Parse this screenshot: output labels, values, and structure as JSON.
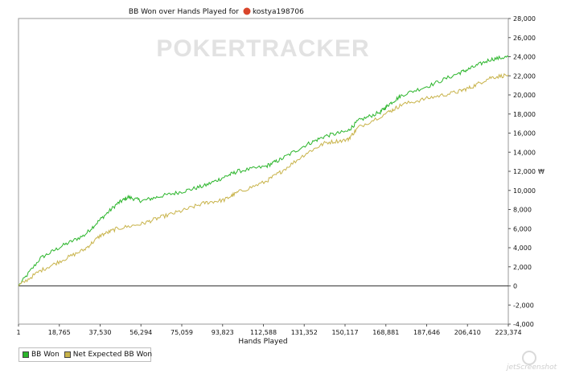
{
  "chart_data": {
    "type": "line",
    "title": "BB Won over Hands Played for",
    "player": "kostya198706",
    "watermark": "POKERTRACKER",
    "xlabel": "Hands Played",
    "ylabel": "",
    "x_ticks": [
      "1",
      "18,765",
      "37,530",
      "56,294",
      "75,059",
      "93,823",
      "112,588",
      "131,352",
      "150,117",
      "168,881",
      "187,646",
      "206,410",
      "223,374"
    ],
    "y_ticks": [
      -4000,
      -2000,
      0,
      2000,
      4000,
      6000,
      8000,
      10000,
      12000,
      14000,
      16000,
      18000,
      20000,
      22000,
      24000,
      26000,
      28000
    ],
    "y_tick_labels": [
      "-4,000",
      "-2,000",
      "0",
      "2,000",
      "4,000",
      "6,000",
      "8,000",
      "10,000",
      "12,000",
      "14,000",
      "16,000",
      "18,000",
      "20,000",
      "22,000",
      "24,000",
      "26,000",
      "28,000"
    ],
    "xlim": [
      1,
      223374
    ],
    "ylim": [
      -4000,
      28000
    ],
    "grid": false,
    "legend_position": "bottom-left",
    "series": [
      {
        "name": "BB Won",
        "color": "#2bb52b",
        "points": [
          [
            1,
            0
          ],
          [
            10000,
            2900
          ],
          [
            20000,
            4200
          ],
          [
            30000,
            5300
          ],
          [
            37530,
            7000
          ],
          [
            45000,
            8600
          ],
          [
            50000,
            9300
          ],
          [
            56294,
            8900
          ],
          [
            65000,
            9400
          ],
          [
            75059,
            9900
          ],
          [
            85000,
            10500
          ],
          [
            93823,
            11400
          ],
          [
            100000,
            12000
          ],
          [
            112588,
            12500
          ],
          [
            120000,
            13300
          ],
          [
            131352,
            14800
          ],
          [
            140000,
            15700
          ],
          [
            150117,
            16200
          ],
          [
            155000,
            17300
          ],
          [
            165000,
            18200
          ],
          [
            168881,
            19000
          ],
          [
            175000,
            20000
          ],
          [
            187646,
            21000
          ],
          [
            200000,
            22200
          ],
          [
            206410,
            22800
          ],
          [
            215000,
            23700
          ],
          [
            223374,
            24000
          ]
        ]
      },
      {
        "name": "Net Expected BB Won",
        "color": "#c8b34a",
        "points": [
          [
            1,
            0
          ],
          [
            10000,
            1600
          ],
          [
            20000,
            2700
          ],
          [
            30000,
            3800
          ],
          [
            37530,
            5300
          ],
          [
            45000,
            6000
          ],
          [
            56294,
            6500
          ],
          [
            65000,
            7200
          ],
          [
            75059,
            7900
          ],
          [
            85000,
            8700
          ],
          [
            93823,
            9000
          ],
          [
            100000,
            9800
          ],
          [
            112588,
            10900
          ],
          [
            120000,
            12000
          ],
          [
            131352,
            13900
          ],
          [
            140000,
            15000
          ],
          [
            150117,
            15300
          ],
          [
            155000,
            16600
          ],
          [
            168881,
            18200
          ],
          [
            175000,
            19000
          ],
          [
            187646,
            19700
          ],
          [
            200000,
            20300
          ],
          [
            206410,
            20800
          ],
          [
            215000,
            21800
          ],
          [
            223374,
            22100
          ]
        ]
      }
    ]
  },
  "footer": {
    "screenshot_mark": "jetScreenshot"
  }
}
